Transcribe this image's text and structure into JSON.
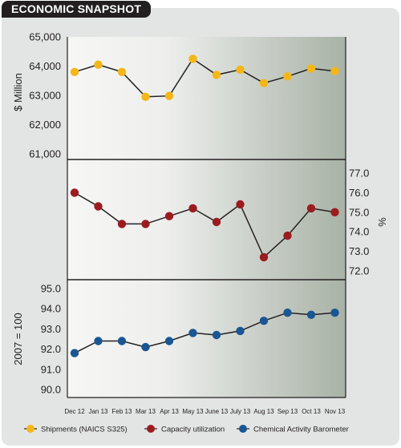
{
  "title": "ECONOMIC SNAPSHOT",
  "colors": {
    "shipments": "#f5b617",
    "capacity": "#9b1c1f",
    "cab": "#1a5693",
    "line": "#231f20",
    "panel_light": "#f6f6f5",
    "panel_dark": "#a8b2a6"
  },
  "chart_data": [
    {
      "type": "line",
      "categories": [
        "Dec 12",
        "Jan 13",
        "Feb 13",
        "Mar 13",
        "Apr 13",
        "May 13",
        "June 13",
        "July 13",
        "Aug 13",
        "Sep 13",
        "Oct 13",
        "Nov 13"
      ],
      "series": [
        {
          "name": "Shipments (NAICS S325)",
          "values": [
            63800,
            64050,
            63800,
            62950,
            62980,
            64250,
            63700,
            63880,
            63420,
            63650,
            63920,
            63830
          ]
        }
      ],
      "ylabel": "$ Million",
      "ylim": [
        61000,
        65000
      ],
      "yticks": [
        "65,000",
        "64,000",
        "63,000",
        "62,000",
        "61,000"
      ]
    },
    {
      "type": "line",
      "categories": [
        "Dec 12",
        "Jan 13",
        "Feb 13",
        "Mar 13",
        "Apr 13",
        "May 13",
        "June 13",
        "July 13",
        "Aug 13",
        "Sep 13",
        "Oct 13",
        "Nov 13"
      ],
      "series": [
        {
          "name": "Capacity utilization",
          "values": [
            76.0,
            75.3,
            74.4,
            74.4,
            74.8,
            75.2,
            74.5,
            75.4,
            72.7,
            73.8,
            75.2,
            75.0
          ]
        }
      ],
      "ylabel": "%",
      "ylim": [
        72.0,
        77.0
      ],
      "yticks": [
        "77.0",
        "76.0",
        "75.0",
        "74.0",
        "73.0",
        "72.0"
      ]
    },
    {
      "type": "line",
      "categories": [
        "Dec 12",
        "Jan 13",
        "Feb 13",
        "Mar 13",
        "Apr 13",
        "May 13",
        "June 13",
        "July 13",
        "Aug 13",
        "Sep 13",
        "Oct 13",
        "Nov 13"
      ],
      "series": [
        {
          "name": "Chemical Activity Barometer",
          "values": [
            91.8,
            92.4,
            92.4,
            92.1,
            92.4,
            92.8,
            92.7,
            92.9,
            93.4,
            93.8,
            93.7,
            93.8
          ]
        }
      ],
      "ylabel": "2007 = 100",
      "ylim": [
        90.0,
        95.0
      ],
      "yticks": [
        "95.0",
        "94.0",
        "93.0",
        "92.0",
        "91.0",
        "90.0"
      ]
    }
  ],
  "legend": [
    {
      "label": "Shipments (NAICS S325)",
      "color_key": "shipments"
    },
    {
      "label": "Capacity utilization",
      "color_key": "capacity"
    },
    {
      "label": "Chemical Activity Barometer",
      "color_key": "cab"
    }
  ]
}
